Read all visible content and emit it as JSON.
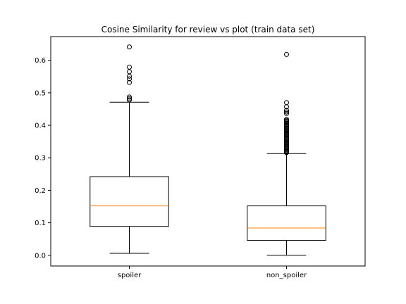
{
  "chart_data": {
    "type": "boxplot",
    "title": "Cosine Similarity for review vs plot (train data set)",
    "xlabel": "",
    "ylabel": "",
    "ylim": [
      -0.033,
      0.673
    ],
    "yticks": [
      0.0,
      0.1,
      0.2,
      0.3,
      0.4,
      0.5,
      0.6
    ],
    "ytick_labels": [
      "0.0",
      "0.1",
      "0.2",
      "0.3",
      "0.4",
      "0.5",
      "0.6"
    ],
    "grid": false,
    "categories": [
      "spoiler",
      "non_spoiler"
    ],
    "boxes": [
      {
        "name": "spoiler",
        "whisker_low": 0.006,
        "q1": 0.089,
        "median": 0.152,
        "q3": 0.242,
        "whisker_high": 0.471,
        "outliers": [
          0.478,
          0.482,
          0.487,
          0.532,
          0.543,
          0.551,
          0.565,
          0.579,
          0.641
        ]
      },
      {
        "name": "non_spoiler",
        "whisker_low": 0.0,
        "q1": 0.046,
        "median": 0.084,
        "q3": 0.152,
        "whisker_high": 0.313,
        "outliers": [
          0.316,
          0.318,
          0.32,
          0.322,
          0.325,
          0.328,
          0.331,
          0.334,
          0.337,
          0.34,
          0.343,
          0.346,
          0.349,
          0.352,
          0.355,
          0.358,
          0.361,
          0.364,
          0.367,
          0.37,
          0.373,
          0.376,
          0.379,
          0.382,
          0.385,
          0.388,
          0.391,
          0.394,
          0.397,
          0.4,
          0.403,
          0.406,
          0.409,
          0.412,
          0.415,
          0.418,
          0.436,
          0.441,
          0.446,
          0.457,
          0.47,
          0.618
        ]
      }
    ],
    "colors": {
      "box": "#000000",
      "median": "#ff7f0e",
      "outlier": "#000000"
    }
  }
}
